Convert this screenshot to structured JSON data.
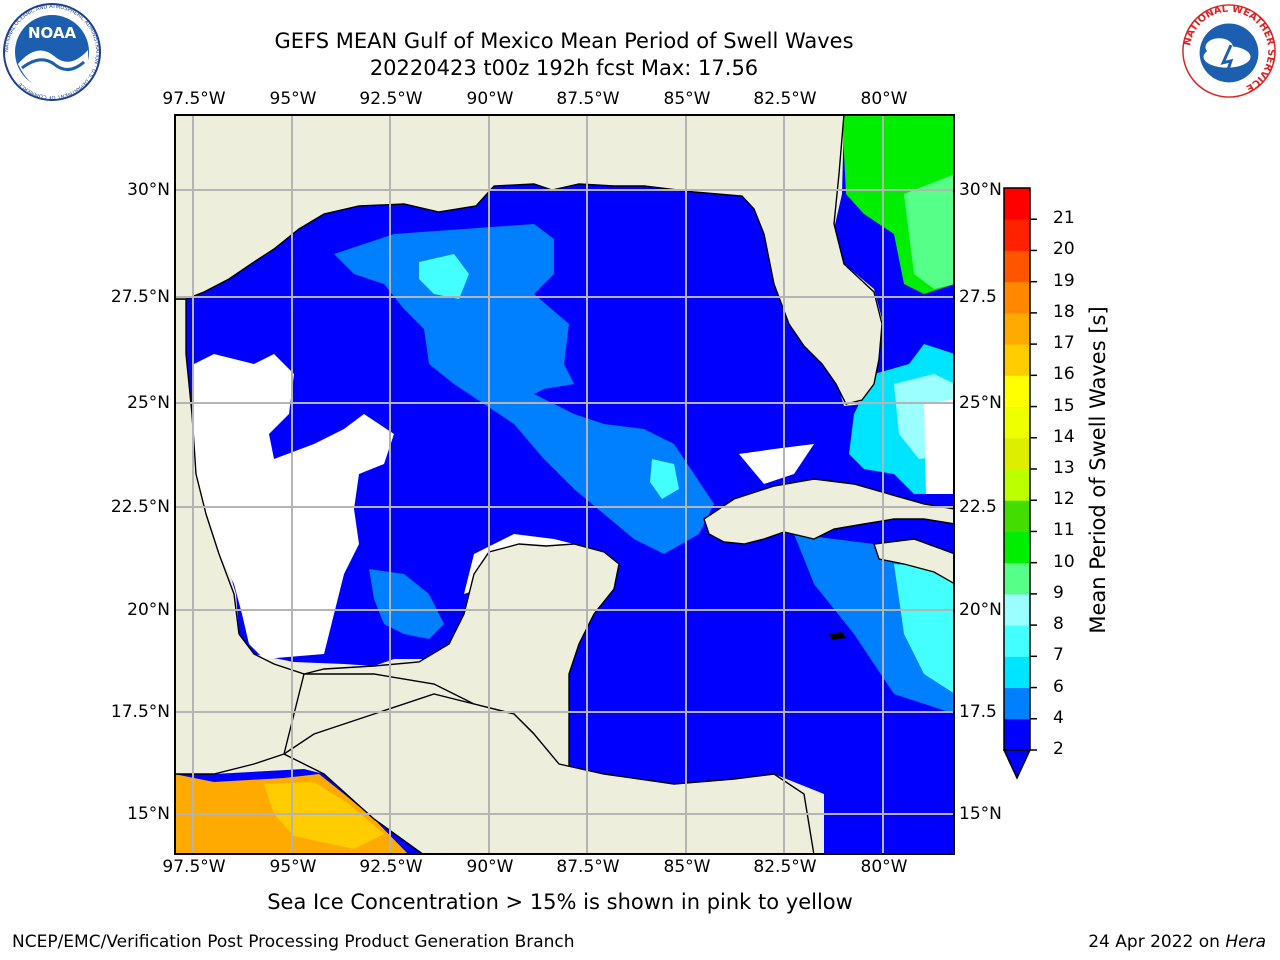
{
  "header": {
    "title_line1": "GEFS MEAN Gulf of Mexico Mean Period of Swell Waves",
    "title_line2": "20220423 t00z 192h fcst   Max: 17.56"
  },
  "logos": {
    "noaa_text": "NOAA",
    "noaa_ring": "NATIONAL OCEANIC AND ATMOSPHERIC ADMINISTRATION · U.S. DEPARTMENT OF COMMERCE",
    "nws_ring": "NATIONAL WEATHER SERVICE"
  },
  "map": {
    "lon_labels": [
      "97.5°W",
      "95°W",
      "92.5°W",
      "90°W",
      "87.5°W",
      "85°W",
      "82.5°W",
      "80°W"
    ],
    "lat_labels_left": [
      "30°N",
      "27.5°N",
      "25°N",
      "22.5°N",
      "20°N",
      "17.5°N",
      "15°N"
    ],
    "lat_labels_right": [
      "30°N",
      "27.5",
      "25°N",
      "22.5",
      "20°N",
      "17.5",
      "15°N"
    ],
    "colors": {
      "land": "#eeeedd",
      "grid": "#b4b4b4",
      "coast": "#000000"
    }
  },
  "colorbar": {
    "label": "Mean Period of Swell Waves [s]",
    "ticks": [
      "2",
      "4",
      "6",
      "7",
      "8",
      "9",
      "10",
      "11",
      "12",
      "13",
      "14",
      "15",
      "16",
      "17",
      "18",
      "19",
      "20",
      "21"
    ],
    "colors": [
      "#0000fe",
      "#0080ff",
      "#00e5ff",
      "#44ffff",
      "#9bffff",
      "#55ff88",
      "#00ee00",
      "#44dd00",
      "#bbff00",
      "#ddee00",
      "#eeff00",
      "#ffff00",
      "#ffcc00",
      "#ffaa00",
      "#ff8800",
      "#ff5500",
      "#ff2200",
      "#ff0000"
    ]
  },
  "note": "Sea Ice Concentration > 15% is shown in pink to yellow",
  "footer": {
    "left": "NCEP/EMC/Verification Post Processing Product Generation Branch",
    "right_date": "24 Apr 2022 on ",
    "right_host": "Hera"
  }
}
